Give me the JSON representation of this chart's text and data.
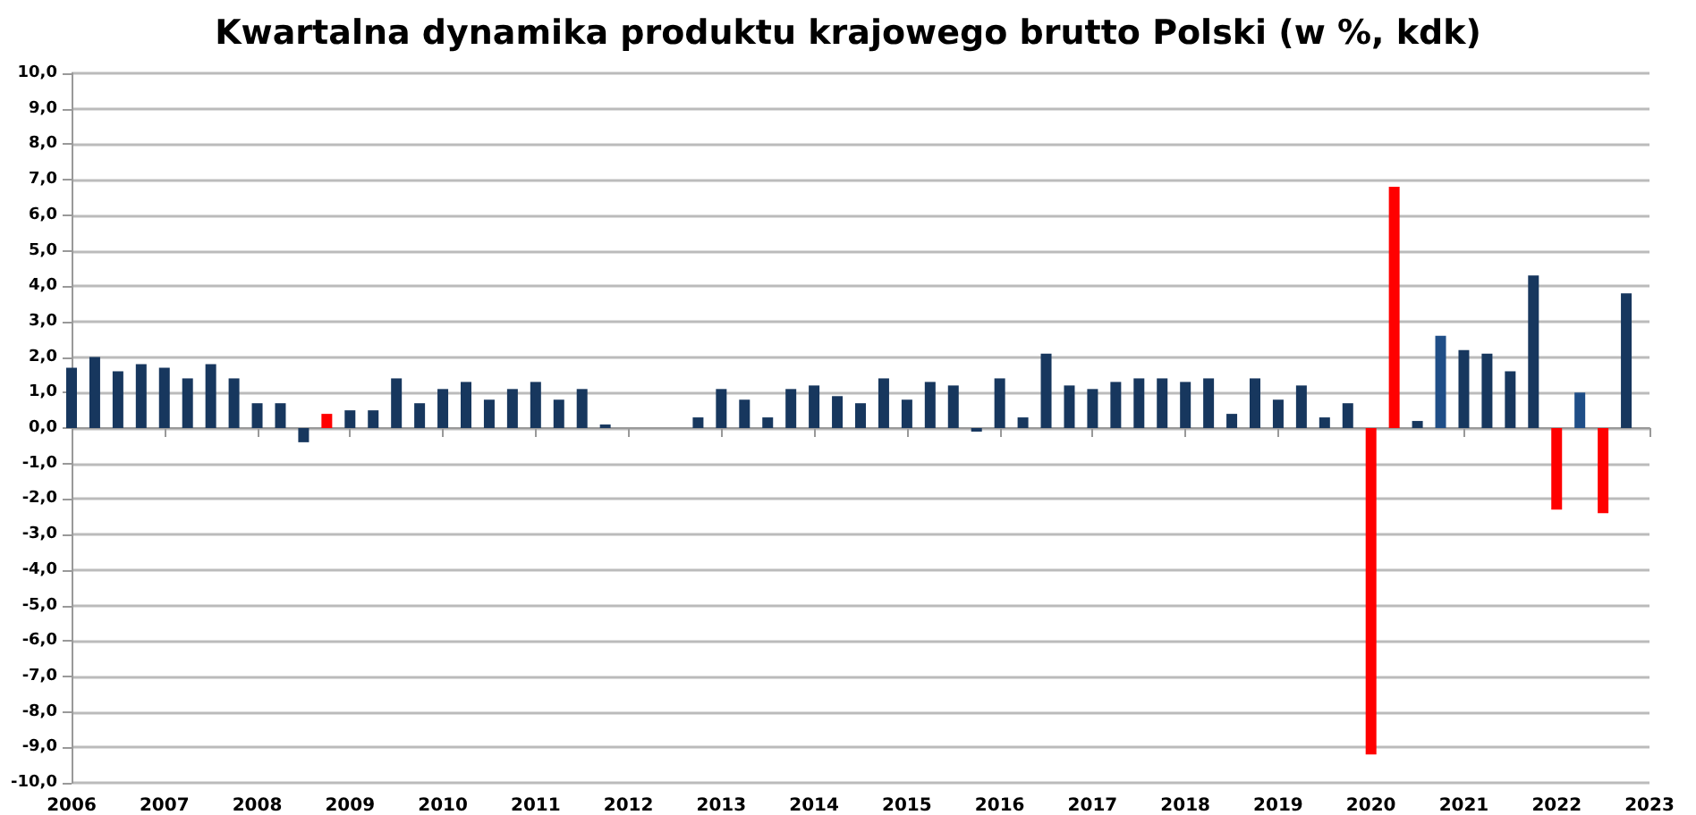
{
  "chart_data": {
    "type": "bar",
    "title": "Kwartalna dynamika produktu krajowego brutto Polski (w %, kdk)",
    "x": [
      2006,
      2006.25,
      2006.5,
      2006.75,
      2007,
      2007.25,
      2007.5,
      2007.75,
      2008,
      2008.25,
      2008.5,
      2008.75,
      2009,
      2009.25,
      2009.5,
      2009.75,
      2010,
      2010.25,
      2010.5,
      2010.75,
      2011,
      2011.25,
      2011.5,
      2011.75,
      2012,
      2012.25,
      2012.5,
      2012.75,
      2013,
      2013.25,
      2013.5,
      2013.75,
      2014,
      2014.25,
      2014.5,
      2014.75,
      2015,
      2015.25,
      2015.5,
      2015.75,
      2016,
      2016.25,
      2016.5,
      2016.75,
      2017,
      2017.25,
      2017.5,
      2017.75,
      2018,
      2018.25,
      2018.5,
      2018.75,
      2019,
      2019.25,
      2019.5,
      2019.75,
      2020,
      2020.25,
      2020.5,
      2020.75,
      2021,
      2021.25,
      2021.5,
      2021.75,
      2022,
      2022.25,
      2022.5,
      2022.75
    ],
    "values": [
      1.7,
      2.0,
      1.6,
      1.8,
      1.7,
      1.4,
      1.8,
      1.4,
      0.7,
      0.7,
      -0.4,
      0.4,
      0.5,
      0.5,
      1.4,
      0.7,
      1.1,
      1.3,
      0.8,
      1.1,
      1.3,
      0.8,
      1.1,
      0.1,
      null,
      null,
      null,
      0.3,
      1.1,
      0.8,
      0.3,
      1.1,
      1.2,
      0.9,
      0.7,
      1.4,
      0.8,
      1.3,
      1.2,
      -0.1,
      1.4,
      0.3,
      2.1,
      1.2,
      1.1,
      1.3,
      1.4,
      1.4,
      1.3,
      1.4,
      0.4,
      1.4,
      0.8,
      1.2,
      0.3,
      0.7,
      -9.2,
      6.8,
      0.2,
      2.6,
      2.2,
      2.1,
      1.6,
      4.3,
      -2.3,
      1.0,
      -2.4,
      3.8
    ],
    "colors": [
      "#17375e",
      "#17375e",
      "#17375e",
      "#17375e",
      "#17375e",
      "#17375e",
      "#17375e",
      "#17375e",
      "#17375e",
      "#17375e",
      "#17375e",
      "#ff0000",
      "#17375e",
      "#17375e",
      "#17375e",
      "#17375e",
      "#17375e",
      "#17375e",
      "#17375e",
      "#17375e",
      "#17375e",
      "#17375e",
      "#17375e",
      "#17375e",
      "#17375e",
      "#17375e",
      "#17375e",
      "#17375e",
      "#17375e",
      "#17375e",
      "#17375e",
      "#17375e",
      "#17375e",
      "#17375e",
      "#17375e",
      "#17375e",
      "#17375e",
      "#17375e",
      "#17375e",
      "#17375e",
      "#17375e",
      "#17375e",
      "#17375e",
      "#17375e",
      "#17375e",
      "#17375e",
      "#17375e",
      "#17375e",
      "#17375e",
      "#17375e",
      "#17375e",
      "#17375e",
      "#17375e",
      "#17375e",
      "#17375e",
      "#17375e",
      "#ff0000",
      "#ff0000",
      "#17375e",
      "#1f4e87",
      "#17375e",
      "#17375e",
      "#17375e",
      "#17375e",
      "#ff0000",
      "#1f4e87",
      "#ff0000",
      "#17375e"
    ],
    "xlim": [
      2006,
      2023
    ],
    "xticks": [
      2006,
      2007,
      2008,
      2009,
      2010,
      2011,
      2012,
      2013,
      2014,
      2015,
      2016,
      2017,
      2018,
      2019,
      2020,
      2021,
      2022,
      2023
    ],
    "ylim": [
      -10,
      10
    ],
    "yticks": [
      {
        "value": -10,
        "label": "-10,0"
      },
      {
        "value": -9,
        "label": "-9,0"
      },
      {
        "value": -8,
        "label": "-8,0"
      },
      {
        "value": -7,
        "label": "-7,0"
      },
      {
        "value": -6,
        "label": "-6,0"
      },
      {
        "value": -5,
        "label": "-5,0"
      },
      {
        "value": -4,
        "label": "-4,0"
      },
      {
        "value": -3,
        "label": "-3,0"
      },
      {
        "value": -2,
        "label": "-2,0"
      },
      {
        "value": -1,
        "label": "-1,0"
      },
      {
        "value": 0,
        "label": "0,0"
      },
      {
        "value": 1,
        "label": "1,0"
      },
      {
        "value": 2,
        "label": "2,0"
      },
      {
        "value": 3,
        "label": "3,0"
      },
      {
        "value": 4,
        "label": "4,0"
      },
      {
        "value": 5,
        "label": "5,0"
      },
      {
        "value": 6,
        "label": "6,0"
      },
      {
        "value": 7,
        "label": "7,0"
      },
      {
        "value": 8,
        "label": "8,0"
      },
      {
        "value": 9,
        "label": "9,0"
      },
      {
        "value": 10,
        "label": "10,0"
      }
    ],
    "grid": "y"
  }
}
